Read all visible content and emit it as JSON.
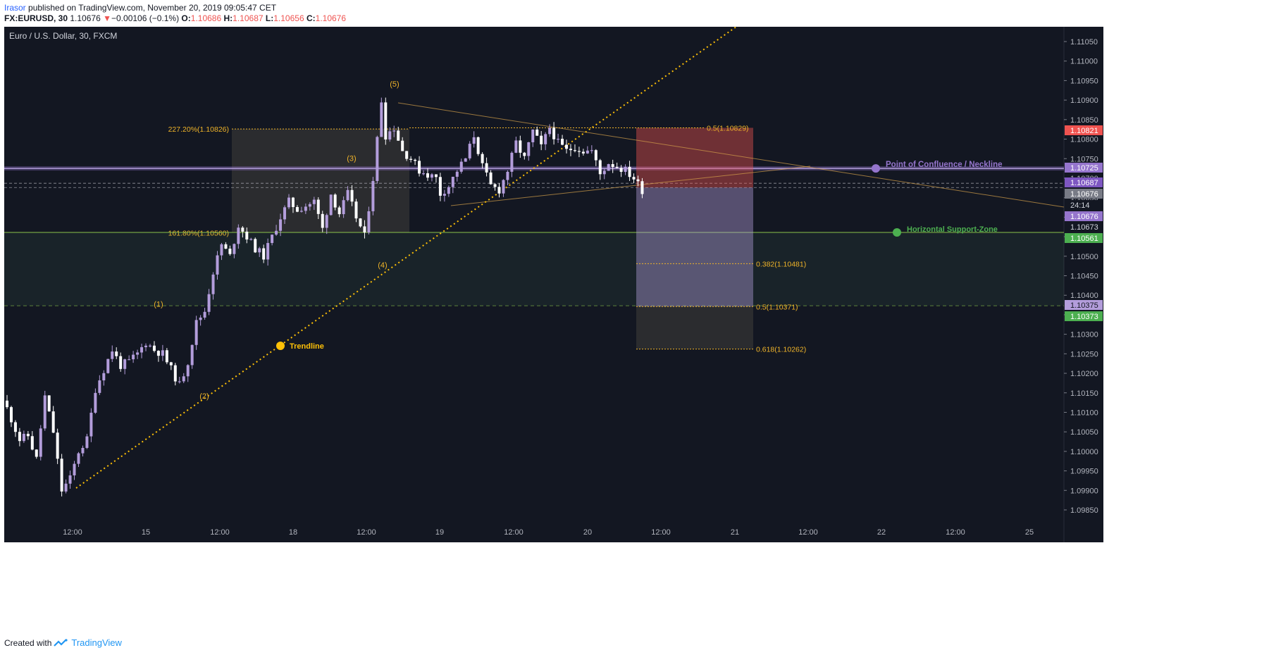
{
  "header": {
    "author": "Irasor",
    "published": "published on TradingView.com, November 20, 2019 09:05:47 CET",
    "symbol": "FX:EURUSD, 30",
    "last": "1.10676",
    "arrow": "▼",
    "change": "−0.00106 (−0.1%)",
    "o_label": "O:",
    "o": "1.10686",
    "h_label": "H:",
    "h": "1.10687",
    "l_label": "L:",
    "l": "1.10656",
    "c_label": "C:",
    "c": "1.10676"
  },
  "footer": {
    "created": "Created with",
    "brand": "TradingView",
    "logo_icon": "tradingview-logo-icon"
  },
  "colors": {
    "background": "#131722",
    "bull": "#b39ddb",
    "bear": "#ffffff",
    "fib": "#f0b429",
    "support": "#8bc34a",
    "neckline": "#9575cd",
    "trendline": "#ffc107",
    "grid": "#363a45"
  },
  "chart_data": {
    "type": "candlestick",
    "title": "Euro / U.S. Dollar, 30, FXCM",
    "symbol": "EURUSD",
    "timeframe": "30",
    "ylim": [
      1.0982,
      1.1109
    ],
    "y_ticks": [
      "1.11050",
      "1.11000",
      "1.10950",
      "1.10900",
      "1.10850",
      "1.10800",
      "1.10750",
      "1.10700",
      "1.10650",
      "1.10600",
      "1.10550",
      "1.10500",
      "1.10450",
      "1.10400",
      "1.10350",
      "1.10300",
      "1.10250",
      "1.10200",
      "1.10150",
      "1.10100",
      "1.10050",
      "1.10000",
      "1.09950",
      "1.09900",
      "1.09850"
    ],
    "x_ticks": [
      "12:00",
      "15",
      "12:00",
      "18",
      "12:00",
      "19",
      "12:00",
      "20",
      "12:00",
      "21",
      "12:00",
      "22",
      "12:00",
      "25"
    ],
    "price_tags": [
      {
        "value": "1.10821",
        "bg": "#ef5350",
        "fg": "#ffffff"
      },
      {
        "value": "1.10725",
        "bg": "#9575cd",
        "fg": "#ffffff"
      },
      {
        "value": "1.10687",
        "bg": "#7e57c2",
        "fg": "#ffffff"
      },
      {
        "value": "1.10676",
        "bg": "#787b86",
        "fg": "#ffffff"
      },
      {
        "value": "24:14",
        "bg": "#131722",
        "fg": "#d1d4dc"
      },
      {
        "value": "1.10676",
        "bg": "#9575cd",
        "fg": "#ffffff"
      },
      {
        "value": "1.10673",
        "bg": "#131722",
        "fg": "#d1d4dc"
      },
      {
        "value": "1.10561",
        "bg": "#4caf50",
        "fg": "#ffffff"
      },
      {
        "value": "1.10375",
        "bg": "#b39ddb",
        "fg": "#131722"
      },
      {
        "value": "1.10373",
        "bg": "#4caf50",
        "fg": "#ffffff"
      }
    ],
    "fib_levels": [
      {
        "label": "227.20%(1.10826)",
        "value": 1.10826
      },
      {
        "label": "161.80%(1.10560)",
        "value": 1.1056
      },
      {
        "label": "0.5(1.10829)",
        "value": 1.10829
      },
      {
        "label": "0.382(1.10481)",
        "value": 1.10481
      },
      {
        "label": "0.5(1.10371)",
        "value": 1.10371
      },
      {
        "label": "0.618(1.10262)",
        "value": 1.10262
      }
    ],
    "wave_labels": [
      {
        "label": "(1)",
        "value": 1.1036
      },
      {
        "label": "(2)",
        "value": 1.1016
      },
      {
        "label": "(3)",
        "value": 1.1073
      },
      {
        "label": "(4)",
        "value": 1.105
      },
      {
        "label": "(5)",
        "value": 1.1092
      }
    ],
    "annotations": [
      {
        "label": "Point of Confluence / Neckline",
        "value": 1.10725
      },
      {
        "label": "Horizontal Support-Zone",
        "value": 1.10561
      },
      {
        "label": "Trendline",
        "value": 1.1029
      }
    ],
    "trade_box": {
      "stop": 1.10829,
      "entry": 1.10676,
      "target": 1.10262
    },
    "waypoints": [
      [
        0,
        1.1011
      ],
      [
        3,
        1.1003
      ],
      [
        5,
        1.1004
      ],
      [
        7,
        1.0998
      ],
      [
        9,
        1.1014
      ],
      [
        11,
        1.1005
      ],
      [
        13,
        1.099
      ],
      [
        15,
        1.0993
      ],
      [
        17,
        1.1
      ],
      [
        19,
        1.1003
      ],
      [
        21,
        1.1016
      ],
      [
        23,
        1.1021
      ],
      [
        25,
        1.1026
      ],
      [
        27,
        1.1022
      ],
      [
        29,
        1.1023
      ],
      [
        31,
        1.1025
      ],
      [
        33,
        1.1028
      ],
      [
        35,
        1.1026
      ],
      [
        37,
        1.1025
      ],
      [
        39,
        1.1021
      ],
      [
        41,
        1.1017
      ],
      [
        43,
        1.1023
      ],
      [
        45,
        1.1033
      ],
      [
        47,
        1.1036
      ],
      [
        49,
        1.1046
      ],
      [
        51,
        1.1053
      ],
      [
        53,
        1.105
      ],
      [
        55,
        1.1058
      ],
      [
        57,
        1.1055
      ],
      [
        59,
        1.1052
      ],
      [
        61,
        1.105
      ],
      [
        63,
        1.1055
      ],
      [
        65,
        1.106
      ],
      [
        67,
        1.1064
      ],
      [
        69,
        1.1062
      ],
      [
        71,
        1.1063
      ],
      [
        73,
        1.1064
      ],
      [
        75,
        1.1057
      ],
      [
        77,
        1.1066
      ],
      [
        79,
        1.1061
      ],
      [
        81,
        1.1066
      ],
      [
        83,
        1.106
      ],
      [
        85,
        1.1055
      ],
      [
        87,
        1.107
      ],
      [
        88,
        1.108
      ],
      [
        89,
        1.109
      ],
      [
        90,
        1.1081
      ],
      [
        92,
        1.1083
      ],
      [
        94,
        1.1077
      ],
      [
        96,
        1.1075
      ],
      [
        98,
        1.1072
      ],
      [
        100,
        1.1071
      ],
      [
        102,
        1.107
      ],
      [
        103,
        1.1066
      ],
      [
        105,
        1.1068
      ],
      [
        107,
        1.1072
      ],
      [
        109,
        1.1075
      ],
      [
        111,
        1.1081
      ],
      [
        113,
        1.1073
      ],
      [
        115,
        1.1068
      ],
      [
        117,
        1.1067
      ],
      [
        119,
        1.1072
      ],
      [
        121,
        1.1079
      ],
      [
        123,
        1.1075
      ],
      [
        125,
        1.1082
      ],
      [
        127,
        1.1078
      ],
      [
        129,
        1.1083
      ],
      [
        131,
        1.1079
      ],
      [
        133,
        1.1077
      ],
      [
        135,
        1.1078
      ],
      [
        137,
        1.1077
      ],
      [
        139,
        1.1077
      ],
      [
        141,
        1.1071
      ],
      [
        143,
        1.1074
      ],
      [
        145,
        1.1073
      ],
      [
        147,
        1.1072
      ],
      [
        149,
        1.107
      ],
      [
        151,
        1.1067
      ]
    ]
  }
}
